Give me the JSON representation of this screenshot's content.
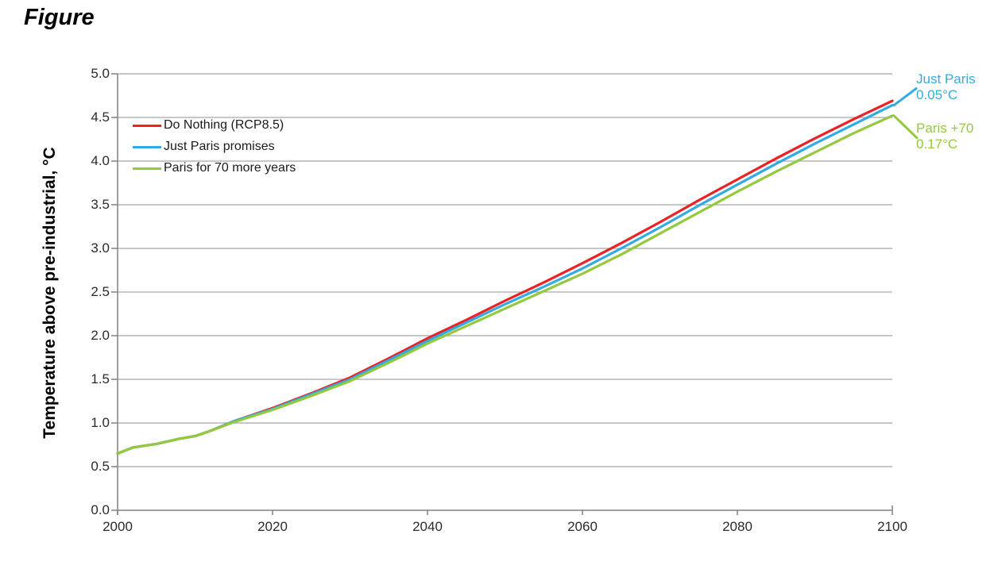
{
  "page": {
    "title": "Figure"
  },
  "colors": {
    "red_line": "#ED2024",
    "blue_line": "#33ABE0",
    "green_line": "#94C83D",
    "gridline": "#A6A6A6",
    "axis": "#808080",
    "tick_text": "#2B2B2B"
  },
  "chart_data": {
    "type": "line",
    "title": "Figure",
    "xlabel": "",
    "ylabel": "Temperature above pre-industrial, °C",
    "xlim": [
      2000,
      2100
    ],
    "ylim": [
      0.0,
      5.0
    ],
    "grid": "horizontal-only",
    "legend_position": "top-left-inside",
    "x_ticks": [
      "2000",
      "2020",
      "2040",
      "2060",
      "2080",
      "2100"
    ],
    "y_ticks": [
      "0.0",
      "0.5",
      "1.0",
      "1.5",
      "2.0",
      "2.5",
      "3.0",
      "3.5",
      "4.0",
      "4.5",
      "5.0"
    ],
    "x": [
      2000,
      2002,
      2005,
      2008,
      2010,
      2012,
      2015,
      2020,
      2025,
      2030,
      2035,
      2040,
      2045,
      2050,
      2055,
      2060,
      2065,
      2070,
      2075,
      2080,
      2085,
      2090,
      2095,
      2100
    ],
    "series": [
      {
        "name": "Do Nothing (RCP8.5)",
        "color": "#ED2024",
        "values": [
          0.65,
          0.72,
          0.76,
          0.82,
          0.85,
          0.91,
          1.02,
          1.17,
          1.34,
          1.52,
          1.74,
          1.97,
          2.18,
          2.4,
          2.61,
          2.83,
          3.06,
          3.3,
          3.55,
          3.79,
          4.03,
          4.26,
          4.48,
          4.69
        ]
      },
      {
        "name": "Just Paris promises",
        "color": "#33ABE0",
        "values": [
          0.65,
          0.72,
          0.76,
          0.82,
          0.85,
          0.91,
          1.02,
          1.16,
          1.33,
          1.5,
          1.72,
          1.94,
          2.15,
          2.36,
          2.56,
          2.77,
          3.0,
          3.24,
          3.49,
          3.73,
          3.97,
          4.2,
          4.42,
          4.64
        ]
      },
      {
        "name": "Paris for 70 more years",
        "color": "#94C83D",
        "values": [
          0.65,
          0.72,
          0.76,
          0.82,
          0.85,
          0.91,
          1.01,
          1.15,
          1.31,
          1.48,
          1.69,
          1.91,
          2.11,
          2.31,
          2.51,
          2.71,
          2.93,
          3.17,
          3.41,
          3.65,
          3.88,
          4.1,
          4.32,
          4.52
        ]
      }
    ],
    "annotations": [
      {
        "label": "Just Paris",
        "value_label": "0.05°C",
        "series": "Just Paris promises",
        "color": "#33ABE0"
      },
      {
        "label": "Paris +70",
        "value_label": "0.17°C",
        "series": "Paris for 70 more years",
        "color": "#94C83D"
      }
    ]
  }
}
